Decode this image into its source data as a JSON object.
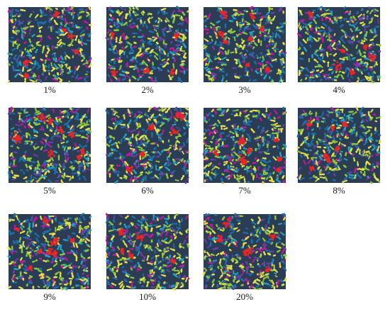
{
  "panels": [
    {
      "label": "1%"
    },
    {
      "label": "2%"
    },
    {
      "label": "3%"
    },
    {
      "label": "4%"
    },
    {
      "label": "5%"
    },
    {
      "label": "6%"
    },
    {
      "label": "7%"
    },
    {
      "label": "8%"
    },
    {
      "label": "9%"
    },
    {
      "label": "10%"
    },
    {
      "label": "20%"
    }
  ],
  "colors": {
    "background": "#ffffff",
    "blue": "#1f6fa8",
    "cyan": "#26a3c2",
    "yellow": "#e6e04a",
    "green": "#8cc63f",
    "red": "#e8262a",
    "magenta": "#c2189c",
    "purple": "#6b3fa0"
  }
}
